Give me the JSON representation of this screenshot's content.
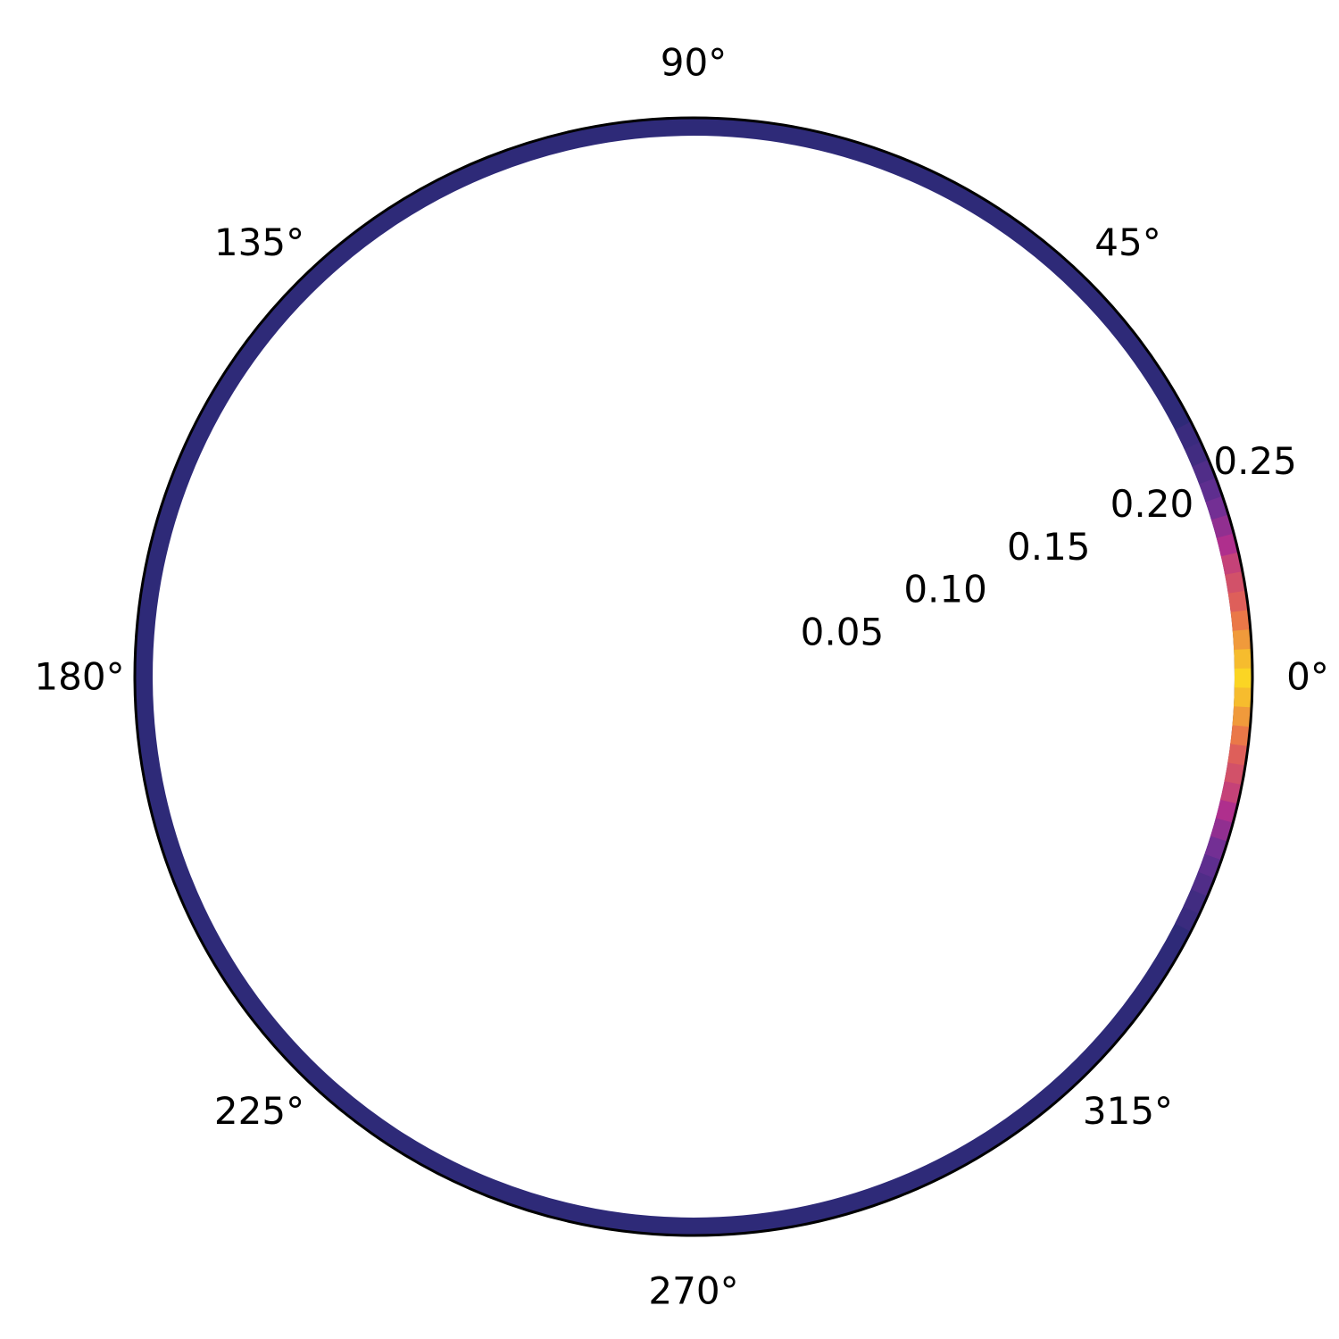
{
  "chart_data": {
    "type": "heatmap",
    "projection": "polar",
    "theta_ticks": [
      "0°",
      "45°",
      "90°",
      "135°",
      "180°",
      "225°",
      "270°",
      "315°"
    ],
    "theta_tick_values_deg": [
      0,
      45,
      90,
      135,
      180,
      225,
      270,
      315
    ],
    "r_ticks": [
      "0.05",
      "0.10",
      "0.15",
      "0.20",
      "0.25"
    ],
    "r_tick_values": [
      0.05,
      0.1,
      0.15,
      0.2,
      0.25
    ],
    "r_tick_angle_deg": 22.5,
    "rlim": [
      0,
      0.25
    ],
    "band_r": [
      0.242,
      0.25
    ],
    "theta_bins_deg": [
      -26,
      -24,
      -22,
      -20,
      -18,
      -16,
      -14,
      -12,
      -10,
      -8,
      -6,
      -4,
      -2,
      0,
      2,
      4,
      6,
      8,
      10,
      12,
      14,
      16,
      18,
      20,
      22,
      24,
      26
    ],
    "intensity": [
      0.05,
      0.08,
      0.14,
      0.2,
      0.28,
      0.38,
      0.48,
      0.58,
      0.64,
      0.7,
      0.78,
      0.86,
      0.94,
      1.0,
      0.94,
      0.86,
      0.78,
      0.7,
      0.64,
      0.58,
      0.48,
      0.38,
      0.28,
      0.2,
      0.14,
      0.08,
      0.05
    ],
    "background_intensity": 0.0,
    "colormap": "plasma",
    "colors": {
      "low": "#2e2a78",
      "mid_low": "#6a2f95",
      "mid": "#b52f8c",
      "mid_high": "#e86b4d",
      "high": "#fbd524",
      "outline": "#000000"
    },
    "grid": false
  }
}
